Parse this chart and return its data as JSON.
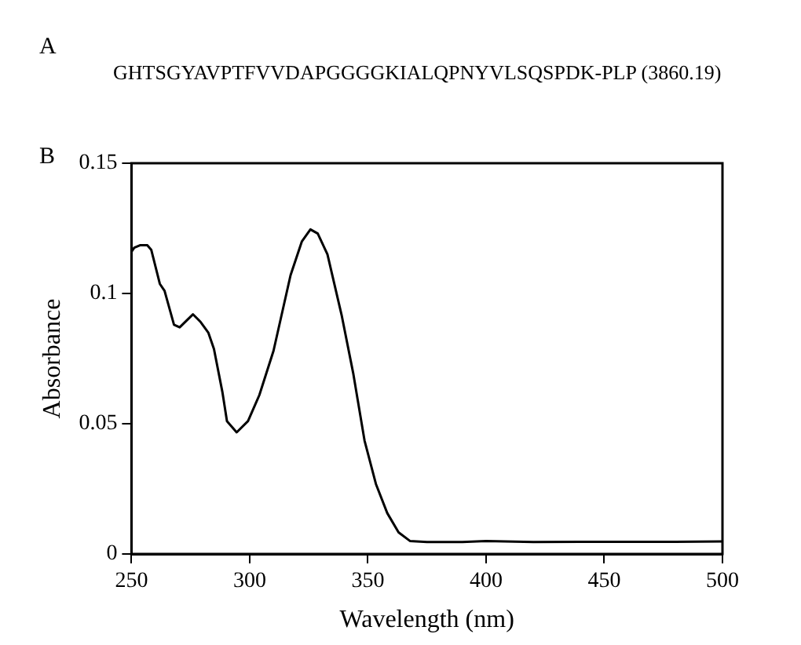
{
  "chart_data": {
    "type": "line",
    "xlabel": "Wavelength (nm)",
    "ylabel": "Absorbance",
    "annotations": [
      "A",
      "GHTSGYAVPTFVVDAPGGGGKIALQPNYVLSQSPDK-PLP (3860.19)",
      "B"
    ],
    "x": [
      250,
      251.2,
      253.6,
      256.7,
      258.4,
      262,
      264,
      268,
      270.4,
      276,
      279.3,
      282.5,
      284.9,
      288.5,
      290.4,
      294.5,
      299.3,
      304.1,
      310.1,
      317.3,
      322.1,
      325.7,
      328.8,
      332.9,
      338.9,
      343.8,
      348.6,
      353.4,
      358.2,
      363,
      367.8,
      375,
      390,
      400,
      420,
      440,
      460,
      480,
      500
    ],
    "series": [
      {
        "color": "#000000",
        "values": [
          0.116,
          0.1176,
          0.1185,
          0.1185,
          0.1167,
          0.1037,
          0.101,
          0.088,
          0.087,
          0.092,
          0.089,
          0.085,
          0.0787,
          0.062,
          0.051,
          0.0467,
          0.051,
          0.061,
          0.078,
          0.107,
          0.12,
          0.1246,
          0.123,
          0.115,
          0.0917,
          0.0694,
          0.0435,
          0.0269,
          0.0157,
          0.0083,
          0.005,
          0.0046,
          0.0046,
          0.005,
          0.0046,
          0.0047,
          0.0047,
          0.0047,
          0.0048
        ]
      }
    ],
    "xlim": [
      250,
      500
    ],
    "xticks": [
      250,
      300,
      350,
      400,
      450,
      500
    ],
    "ylim": [
      0,
      0.15
    ],
    "yticks": [
      0,
      0.05,
      0.1,
      0.15
    ],
    "grid": false,
    "legend": false,
    "marker": "none",
    "line_style": "solid"
  }
}
